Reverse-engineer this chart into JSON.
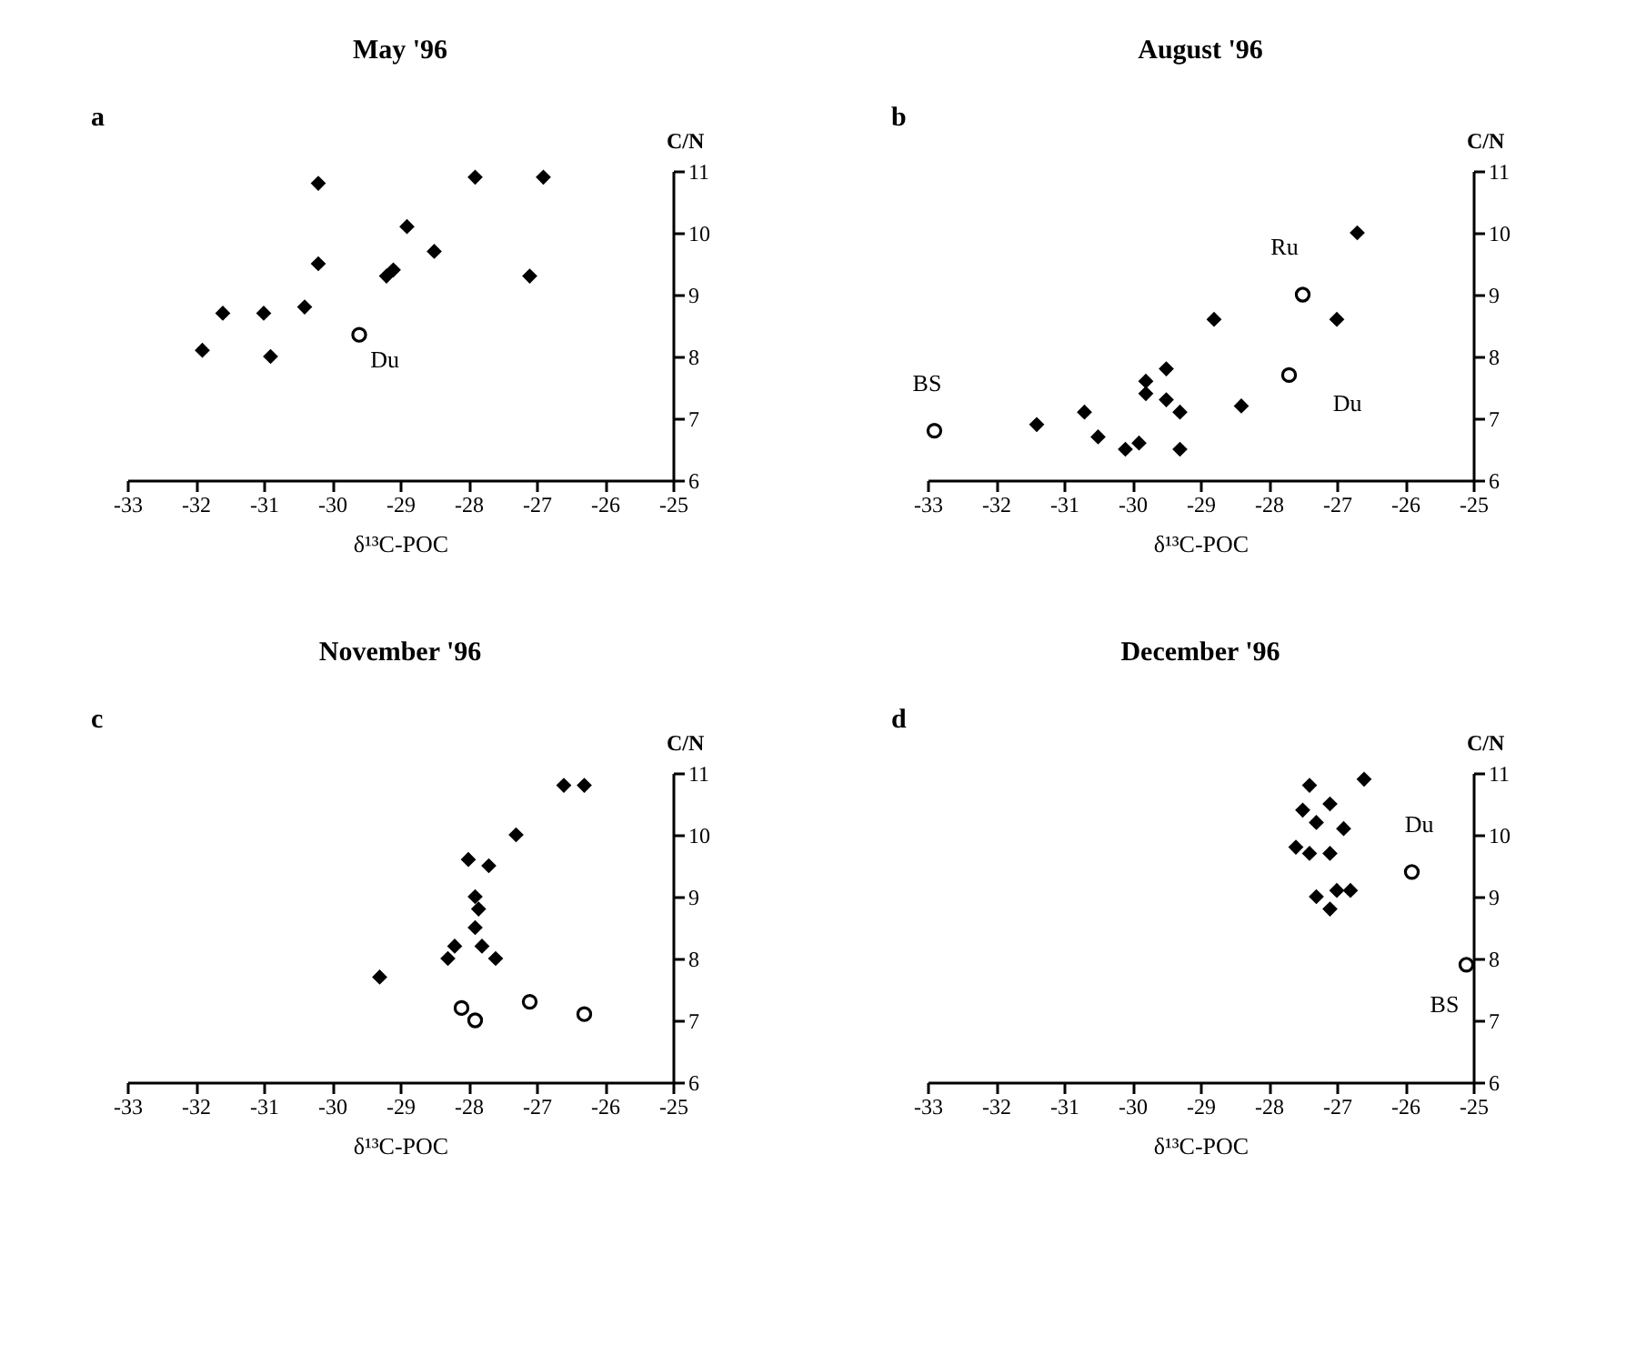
{
  "chart_data": [
    {
      "type": "scatter",
      "title": "May '96",
      "xlabel": "δ¹³C-POC",
      "ylabel": "C/N",
      "xlim": [
        -33,
        -25
      ],
      "ylim": [
        6,
        11
      ],
      "xticks": [
        -33,
        -32,
        -31,
        -30,
        -29,
        -28,
        -27,
        -26,
        -25
      ],
      "yticks": [
        6,
        7,
        8,
        9,
        10,
        11
      ],
      "annotations": [
        "a",
        {
          "text": "Du",
          "x": -29.6,
          "y": 8.35
        }
      ],
      "series": [
        {
          "color": "#000000",
          "marker": "diamond",
          "x": [
            -31.9,
            -31.6,
            -31.0,
            -30.9,
            -30.4,
            -30.2,
            -30.2,
            -29.2,
            -29.1,
            -28.9,
            -28.5,
            -27.9,
            -27.1,
            -26.9
          ],
          "values": [
            8.1,
            8.7,
            8.7,
            8.0,
            8.8,
            10.8,
            9.5,
            9.3,
            9.4,
            10.1,
            9.7,
            10.9,
            9.3,
            10.9
          ]
        },
        {
          "color": "#000000",
          "marker": "circle",
          "x": [
            -29.6
          ],
          "values": [
            8.35
          ]
        }
      ]
    },
    {
      "type": "scatter",
      "title": "August '96",
      "xlabel": "δ¹³C-POC",
      "ylabel": "C/N",
      "xlim": [
        -33,
        -25
      ],
      "ylim": [
        6,
        11
      ],
      "xticks": [
        -33,
        -32,
        -31,
        -30,
        -29,
        -28,
        -27,
        -26,
        -25
      ],
      "yticks": [
        6,
        7,
        8,
        9,
        10,
        11
      ],
      "annotations": [
        "b",
        {
          "text": "BS",
          "x": -32.9,
          "y": 6.8
        },
        {
          "text": "Ru",
          "x": -27.5,
          "y": 9.0
        },
        {
          "text": "Du",
          "x": -27.7,
          "y": 7.7
        }
      ],
      "series": [
        {
          "color": "#000000",
          "marker": "diamond",
          "x": [
            -31.4,
            -30.7,
            -30.5,
            -30.1,
            -29.9,
            -29.8,
            -29.8,
            -29.5,
            -29.5,
            -29.3,
            -29.3,
            -28.8,
            -28.4,
            -27.0,
            -26.7
          ],
          "values": [
            6.9,
            7.1,
            6.7,
            6.5,
            6.6,
            7.6,
            7.4,
            7.8,
            7.3,
            7.1,
            6.5,
            8.6,
            7.2,
            8.6,
            10.0
          ]
        },
        {
          "color": "#000000",
          "marker": "circle",
          "x": [
            -32.9,
            -27.5,
            -27.7
          ],
          "values": [
            6.8,
            9.0,
            7.7
          ]
        }
      ]
    },
    {
      "type": "scatter",
      "title": "November '96",
      "xlabel": "δ¹³C-POC",
      "ylabel": "C/N",
      "xlim": [
        -33,
        -25
      ],
      "ylim": [
        6,
        11
      ],
      "xticks": [
        -33,
        -32,
        -31,
        -30,
        -29,
        -28,
        -27,
        -26,
        -25
      ],
      "yticks": [
        6,
        7,
        8,
        9,
        10,
        11
      ],
      "annotations": [
        "c"
      ],
      "series": [
        {
          "color": "#000000",
          "marker": "diamond",
          "x": [
            -29.3,
            -28.3,
            -28.2,
            -28.0,
            -27.7,
            -27.9,
            -27.85,
            -27.9,
            -27.8,
            -27.6,
            -27.3,
            -26.6,
            -26.3
          ],
          "values": [
            7.7,
            8.0,
            8.2,
            9.6,
            9.5,
            9.0,
            8.8,
            8.5,
            8.2,
            8.0,
            10.0,
            10.8,
            10.8
          ]
        },
        {
          "color": "#000000",
          "marker": "circle",
          "x": [
            -28.1,
            -27.9,
            -27.1,
            -26.3
          ],
          "values": [
            7.2,
            7.0,
            7.3,
            7.1
          ]
        }
      ]
    },
    {
      "type": "scatter",
      "title": "December '96",
      "xlabel": "δ¹³C-POC",
      "ylabel": "C/N",
      "xlim": [
        -33,
        -25
      ],
      "ylim": [
        6,
        11
      ],
      "xticks": [
        -33,
        -32,
        -31,
        -30,
        -29,
        -28,
        -27,
        -26,
        -25
      ],
      "yticks": [
        6,
        7,
        8,
        9,
        10,
        11
      ],
      "annotations": [
        "d",
        {
          "text": "Du",
          "x": -25.9,
          "y": 9.4
        },
        {
          "text": "BS",
          "x": -25.1,
          "y": 7.9
        }
      ],
      "series": [
        {
          "color": "#000000",
          "marker": "diamond",
          "x": [
            -27.4,
            -26.6,
            -27.5,
            -27.1,
            -27.3,
            -26.9,
            -27.6,
            -27.4,
            -27.1,
            -27.3,
            -27.0,
            -27.1,
            -26.8
          ],
          "values": [
            10.8,
            10.9,
            10.4,
            10.5,
            10.2,
            10.1,
            9.8,
            9.7,
            9.7,
            9.0,
            9.1,
            8.8,
            9.1
          ]
        },
        {
          "color": "#000000",
          "marker": "circle",
          "x": [
            -25.9,
            -25.1
          ],
          "values": [
            9.4,
            7.9
          ]
        }
      ]
    }
  ]
}
